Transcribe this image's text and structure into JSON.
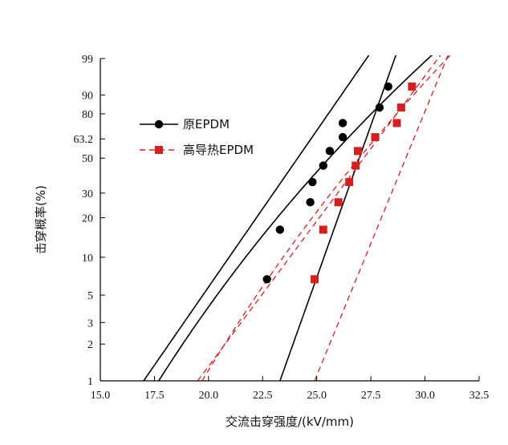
{
  "chart_data": {
    "type": "scatter",
    "title": "",
    "xlabel": "交流击穿强度/(kV/mm)",
    "ylabel": "击穿概率(%)",
    "xlim": [
      15.0,
      32.5
    ],
    "y_scale": "weibull",
    "ylim": [
      1,
      99
    ],
    "x_ticks": [
      "15.0",
      "17.5",
      "20.0",
      "22.5",
      "25.0",
      "27.5",
      "30.0",
      "32.5"
    ],
    "y_ticks": [
      {
        "value": 1,
        "label": "1"
      },
      {
        "value": 2,
        "label": "2"
      },
      {
        "value": 3,
        "label": "3"
      },
      {
        "value": 5,
        "label": "5"
      },
      {
        "value": 10,
        "label": "10"
      },
      {
        "value": 20,
        "label": "20"
      },
      {
        "value": 30,
        "label": "30"
      },
      {
        "value": 50,
        "label": "50"
      },
      {
        "value": 63.2,
        "label": "63.2"
      },
      {
        "value": 80,
        "label": "80"
      },
      {
        "value": 90,
        "label": "90"
      },
      {
        "value": 99,
        "label": "99"
      }
    ],
    "legend_position": "upper-left",
    "series": [
      {
        "name": "原EPDM",
        "color": "#000000",
        "marker": "circle",
        "line_style": "solid",
        "points": [
          {
            "x": 22.7,
            "y": 6.7
          },
          {
            "x": 23.3,
            "y": 16.3
          },
          {
            "x": 24.7,
            "y": 25.9
          },
          {
            "x": 24.8,
            "y": 35.6
          },
          {
            "x": 25.3,
            "y": 45.2
          },
          {
            "x": 25.6,
            "y": 54.8
          },
          {
            "x": 26.2,
            "y": 64.4
          },
          {
            "x": 26.2,
            "y": 74.1
          },
          {
            "x": 27.9,
            "y": 83.7
          },
          {
            "x": 28.3,
            "y": 93.3
          }
        ],
        "fit": {
          "eta": 26.4,
          "beta": 11.5
        },
        "bounds": [
          {
            "x_at_p1": 17.0,
            "x_at_p99": 27.3
          },
          {
            "x_at_p1": 23.3,
            "x_at_p99": 28.6
          }
        ]
      },
      {
        "name": "高导热EPDM",
        "color": "#d42020",
        "marker": "square",
        "line_style": "dashed",
        "points": [
          {
            "x": 24.9,
            "y": 6.7
          },
          {
            "x": 25.3,
            "y": 16.3
          },
          {
            "x": 26.0,
            "y": 25.9
          },
          {
            "x": 26.5,
            "y": 35.6
          },
          {
            "x": 26.8,
            "y": 45.2
          },
          {
            "x": 26.9,
            "y": 54.8
          },
          {
            "x": 27.7,
            "y": 64.4
          },
          {
            "x": 28.7,
            "y": 74.1
          },
          {
            "x": 28.9,
            "y": 83.7
          },
          {
            "x": 29.4,
            "y": 93.3
          }
        ],
        "fit": {
          "eta": 27.7,
          "beta": 13.5
        },
        "bounds": [
          {
            "x_at_p1": 19.5,
            "x_at_p99": 30.6
          },
          {
            "x_at_p1": 24.9,
            "x_at_p99": 31.0
          }
        ]
      }
    ]
  }
}
